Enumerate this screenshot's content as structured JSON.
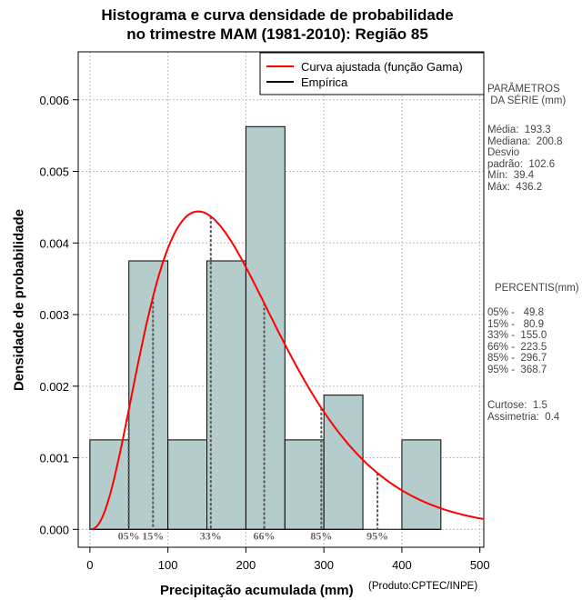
{
  "title": {
    "line1": "Histograma e curva densidade de probabilidade",
    "line2": "no trimestre MAM (1981-2010): Região 85"
  },
  "chart_data": {
    "type": "bar",
    "subtype": "histogram_with_density_curve",
    "xlabel": "Precipitação acumulada (mm)",
    "ylabel": "Densidade de probabilidade",
    "xlim": [
      -15,
      505
    ],
    "ylim": [
      -0.00025,
      0.00667
    ],
    "x_ticks": [
      0,
      100,
      200,
      300,
      400,
      500
    ],
    "y_ticks": [
      0.0,
      0.001,
      0.002,
      0.003,
      0.004,
      0.005,
      0.006
    ],
    "y_tick_labels": [
      "0.000",
      "0.001",
      "0.002",
      "0.003",
      "0.004",
      "0.005",
      "0.006"
    ],
    "grid": true,
    "bins": [
      {
        "from": 0,
        "to": 50,
        "density": 0.00125
      },
      {
        "from": 50,
        "to": 100,
        "density": 0.00375
      },
      {
        "from": 100,
        "to": 150,
        "density": 0.00125
      },
      {
        "from": 150,
        "to": 200,
        "density": 0.00375
      },
      {
        "from": 200,
        "to": 250,
        "density": 0.005625
      },
      {
        "from": 250,
        "to": 300,
        "density": 0.00125
      },
      {
        "from": 300,
        "to": 350,
        "density": 0.001875
      },
      {
        "from": 350,
        "to": 400,
        "density": 0
      },
      {
        "from": 400,
        "to": 450,
        "density": 0.00125
      }
    ],
    "gamma_fit": {
      "mean": 193.3,
      "sd": 102.6
    },
    "percentile_marks": [
      {
        "label": "05%",
        "x": 49.8
      },
      {
        "label": "15%",
        "x": 80.9
      },
      {
        "label": "33%",
        "x": 155.0
      },
      {
        "label": "66%",
        "x": 223.5
      },
      {
        "label": "85%",
        "x": 296.7
      },
      {
        "label": "95%",
        "x": 368.7
      }
    ],
    "legend": {
      "position": "top-right",
      "entries": [
        {
          "label": "Curva ajustada (função Gama)",
          "color": "#ff0000"
        },
        {
          "label": "Empírica",
          "color": "#000000"
        }
      ]
    }
  },
  "side_panel": {
    "params_header": "PARÂMETROS\n DA SÉRIE (mm)",
    "params": "Média:  193.3\nMediana:  200.8\nDesvio\npadrão:  102.6\nMín:  39.4\nMáx:  436.2",
    "percentis_header": "PERCENTIS(mm)",
    "percentis": "05% -   49.8\n15% -   80.9\n33% -  155.0\n66% -  223.5\n85% -  296.7\n95% -  368.7",
    "stats": "Curtose:  1.5\nAssimetria:  0.4"
  },
  "credit": "(Produto:CPTEC/INPE)",
  "colors": {
    "bar_fill": "#b4cccb",
    "curve": "#ff0000",
    "grid": "#bbbbbb",
    "percentile_line": "#555555"
  }
}
